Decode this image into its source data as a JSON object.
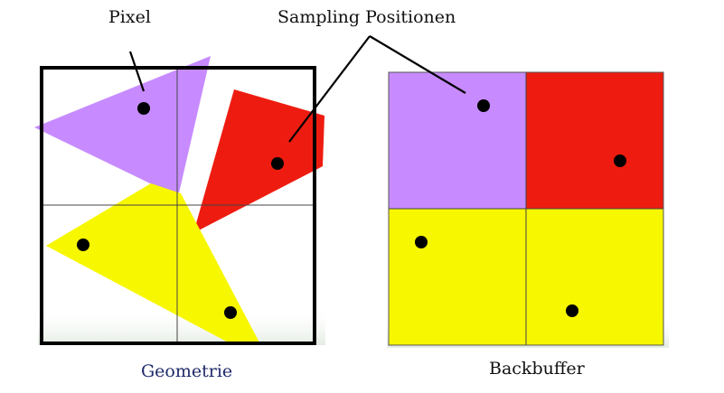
{
  "labels": {
    "pixel": "Pixel",
    "sampling_positions": "Sampling Positionen"
  },
  "captions": {
    "geometry": "Geometrie",
    "backbuffer": "Backbuffer"
  },
  "colors": {
    "purple": "#c78bff",
    "red": "#ee1c10",
    "yellow": "#f7f700",
    "sample_dot": "#000000",
    "frame": "#000000",
    "grid_line": "#444444"
  },
  "backbuffer_pixels": [
    {
      "row": 0,
      "col": 0,
      "color": "purple"
    },
    {
      "row": 0,
      "col": 1,
      "color": "red"
    },
    {
      "row": 1,
      "col": 0,
      "color": "yellow"
    },
    {
      "row": 1,
      "col": 1,
      "color": "yellow"
    }
  ]
}
